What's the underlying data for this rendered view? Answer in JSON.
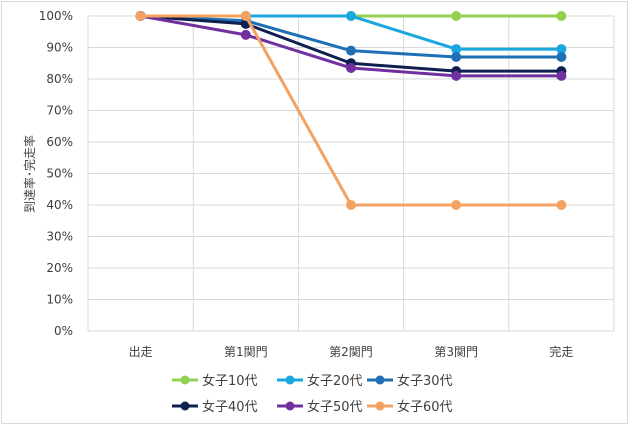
{
  "chart_data": {
    "type": "line",
    "title": "",
    "xlabel": "",
    "ylabel": "到達率･完走率",
    "categories": [
      "出走",
      "第1関門",
      "第2関門",
      "第3関門",
      "完走"
    ],
    "ylim": [
      0,
      100
    ],
    "y_tick_values": [
      0,
      10,
      20,
      30,
      40,
      50,
      60,
      70,
      80,
      90,
      100
    ],
    "y_tick_labels": [
      "0%",
      "10%",
      "20%",
      "30%",
      "40%",
      "50%",
      "60%",
      "70%",
      "80%",
      "90%",
      "100%"
    ],
    "grid": "horizontal+vertical",
    "legend_position": "bottom",
    "series": [
      {
        "name": "女子10代",
        "color": "#92d050",
        "values": [
          100,
          100,
          100,
          100,
          100
        ]
      },
      {
        "name": "女子20代",
        "color": "#1aa7e0",
        "values": [
          100,
          100,
          100,
          89.5,
          89.5
        ]
      },
      {
        "name": "女子30代",
        "color": "#1f6fb5",
        "values": [
          100,
          98.5,
          89,
          87,
          87
        ]
      },
      {
        "name": "女子40代",
        "color": "#0f1f4f",
        "values": [
          100,
          97.5,
          85,
          82.5,
          82.5
        ]
      },
      {
        "name": "女子50代",
        "color": "#7030a0",
        "values": [
          100,
          94,
          83.5,
          81,
          81
        ]
      },
      {
        "name": "女子60代",
        "color": "#f4a261",
        "values": [
          100,
          100,
          40,
          40,
          40
        ]
      }
    ]
  }
}
